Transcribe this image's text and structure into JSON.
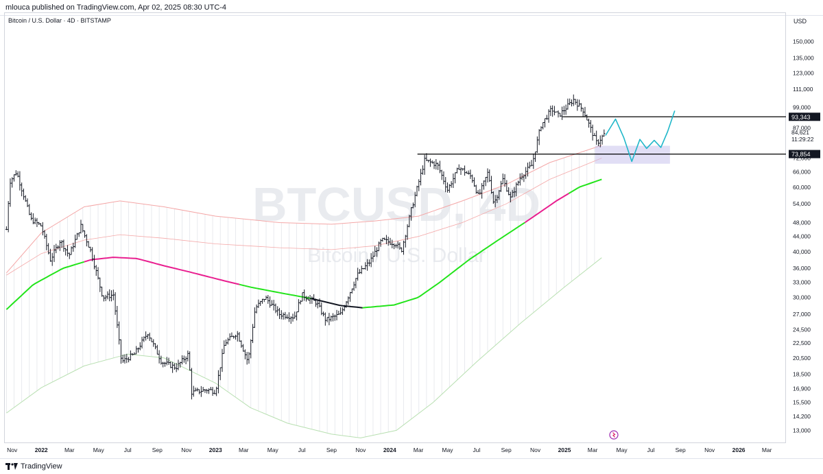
{
  "header": {
    "publish_line": "mlouca published on TradingView.com, Apr 02, 2025 08:30 UTC-4"
  },
  "symbol_line": "Bitcoin / U.S. Dollar · 4D · BITSTAMP",
  "price_axis_currency": "USD",
  "watermark": {
    "ticker": "BTCUSD, 4D",
    "name": "Bitcoin / U.S. Dollar"
  },
  "footer": {
    "brand": "TradingView"
  },
  "colors": {
    "candle": "#131722",
    "ma_green": "#22e41a",
    "ma_magenta": "#e91e8f",
    "ma_black": "#131722",
    "band_upper": "#f4a6a6",
    "band_lower": "#b7dfb0",
    "projection": "#1fb7c9",
    "zone": "#c9c2ec",
    "hline": "#000000"
  },
  "chart_data": {
    "type": "candlestick",
    "y_scale": "log",
    "ylim": [
      12000,
      180000
    ],
    "y_ticks": [
      "150,000",
      "135,000",
      "123,000",
      "111,000",
      "99,000",
      "87,000",
      "72,000",
      "66,000",
      "60,000",
      "54,000",
      "48,000",
      "44,000",
      "40,000",
      "36,000",
      "33,000",
      "30,000",
      "27,000",
      "24,500",
      "22,500",
      "20,500",
      "18,500",
      "16,900",
      "15,500",
      "14,200",
      "13,000"
    ],
    "x_ticks": [
      "Nov",
      "2022",
      "Mar",
      "May",
      "Jul",
      "Sep",
      "Nov",
      "2023",
      "Mar",
      "May",
      "Jul",
      "Sep",
      "Nov",
      "2024",
      "Mar",
      "May",
      "Jul",
      "Sep",
      "Nov",
      "2025",
      "Mar",
      "May",
      "Jul",
      "Sep",
      "Nov",
      "2026",
      "Mar"
    ],
    "x_tick_dates": [
      "2021-11-01",
      "2022-01-01",
      "2022-03-01",
      "2022-05-01",
      "2022-07-01",
      "2022-09-01",
      "2022-11-01",
      "2023-01-01",
      "2023-03-01",
      "2023-05-01",
      "2023-07-01",
      "2023-09-01",
      "2023-11-01",
      "2024-01-01",
      "2024-03-01",
      "2024-05-01",
      "2024-07-01",
      "2024-09-01",
      "2024-11-01",
      "2025-01-01",
      "2025-03-01",
      "2025-05-01",
      "2025-07-01",
      "2025-09-01",
      "2025-11-01",
      "2026-01-01",
      "2026-03-01"
    ],
    "x_range": [
      "2021-10-18",
      "2026-04-10"
    ],
    "price_path": [
      [
        "2021-10-20",
        46000
      ],
      [
        "2021-10-27",
        62000
      ],
      [
        "2021-11-10",
        66000
      ],
      [
        "2021-11-25",
        57000
      ],
      [
        "2021-12-10",
        49000
      ],
      [
        "2022-01-01",
        47000
      ],
      [
        "2022-01-20",
        38000
      ],
      [
        "2022-02-10",
        43000
      ],
      [
        "2022-02-28",
        39000
      ],
      [
        "2022-03-25",
        47000
      ],
      [
        "2022-04-15",
        40000
      ],
      [
        "2022-05-10",
        30000
      ],
      [
        "2022-06-01",
        30500
      ],
      [
        "2022-06-18",
        20000
      ],
      [
        "2022-07-15",
        21000
      ],
      [
        "2022-08-12",
        24000
      ],
      [
        "2022-09-10",
        20000
      ],
      [
        "2022-10-10",
        19300
      ],
      [
        "2022-11-05",
        21000
      ],
      [
        "2022-11-12",
        16500
      ],
      [
        "2022-12-15",
        16800
      ],
      [
        "2023-01-01",
        16600
      ],
      [
        "2023-01-20",
        22500
      ],
      [
        "2023-02-15",
        24000
      ],
      [
        "2023-03-10",
        20000
      ],
      [
        "2023-03-25",
        28000
      ],
      [
        "2023-04-15",
        30000
      ],
      [
        "2023-05-15",
        27000
      ],
      [
        "2023-06-15",
        26500
      ],
      [
        "2023-07-01",
        30500
      ],
      [
        "2023-08-01",
        29000
      ],
      [
        "2023-08-20",
        26000
      ],
      [
        "2023-09-20",
        27000
      ],
      [
        "2023-10-25",
        34500
      ],
      [
        "2023-11-20",
        37500
      ],
      [
        "2023-12-15",
        43000
      ],
      [
        "2024-01-15",
        42000
      ],
      [
        "2024-01-25",
        40000
      ],
      [
        "2024-02-15",
        52000
      ],
      [
        "2024-03-14",
        71000
      ],
      [
        "2024-04-10",
        69000
      ],
      [
        "2024-05-01",
        59000
      ],
      [
        "2024-05-25",
        68000
      ],
      [
        "2024-06-20",
        64000
      ],
      [
        "2024-07-05",
        56500
      ],
      [
        "2024-07-25",
        66000
      ],
      [
        "2024-08-06",
        54000
      ],
      [
        "2024-08-25",
        63000
      ],
      [
        "2024-09-10",
        56000
      ],
      [
        "2024-10-01",
        64000
      ],
      [
        "2024-10-25",
        69000
      ],
      [
        "2024-11-12",
        88000
      ],
      [
        "2024-12-05",
        98000
      ],
      [
        "2024-12-20",
        94000
      ],
      [
        "2025-01-20",
        104000
      ],
      [
        "2025-02-10",
        97000
      ],
      [
        "2025-03-01",
        84000
      ],
      [
        "2025-03-10",
        79000
      ],
      [
        "2025-03-28",
        84621
      ]
    ],
    "current_price": 84621,
    "price_label_extra": "11:29:22",
    "horizontal_levels": [
      {
        "label": "93,343",
        "value": 93343,
        "from": "2024-12-28",
        "to": "2026-04-10"
      },
      {
        "label": "73,854",
        "value": 73854,
        "from": "2024-02-28",
        "to": "2026-04-10"
      }
    ],
    "support_zone": {
      "from": "2025-03-06",
      "to": "2025-08-10",
      "low": 69500,
      "high": 77800
    },
    "projection": [
      [
        "2025-03-28",
        83000
      ],
      [
        "2025-04-18",
        92000
      ],
      [
        "2025-05-05",
        82000
      ],
      [
        "2025-05-22",
        70500
      ],
      [
        "2025-06-08",
        81000
      ],
      [
        "2025-06-22",
        76500
      ],
      [
        "2025-07-08",
        80500
      ],
      [
        "2025-07-22",
        77000
      ],
      [
        "2025-08-05",
        85000
      ],
      [
        "2025-08-20",
        97000
      ]
    ],
    "ma_200": [
      [
        "2021-10-20",
        27800
      ],
      [
        "2021-12-15",
        32500
      ],
      [
        "2022-02-15",
        36000
      ],
      [
        "2022-04-15",
        38000
      ],
      [
        "2022-06-01",
        38600
      ],
      [
        "2022-07-20",
        38300
      ],
      [
        "2022-09-15",
        36600
      ],
      [
        "2022-11-15",
        35000
      ],
      [
        "2023-01-15",
        33400
      ],
      [
        "2023-03-15",
        32000
      ],
      [
        "2023-05-20",
        30800
      ],
      [
        "2023-07-20",
        29800
      ],
      [
        "2023-09-20",
        28500
      ],
      [
        "2023-11-05",
        28100
      ],
      [
        "2024-01-10",
        28600
      ],
      [
        "2024-03-01",
        30000
      ],
      [
        "2024-04-15",
        33000
      ],
      [
        "2024-06-15",
        38000
      ],
      [
        "2024-08-15",
        43000
      ],
      [
        "2024-10-15",
        48500
      ],
      [
        "2024-12-15",
        55000
      ],
      [
        "2025-02-01",
        60000
      ],
      [
        "2025-03-20",
        63000
      ]
    ],
    "band_upper": [
      [
        "2021-10-20",
        35000
      ],
      [
        "2022-01-01",
        45000
      ],
      [
        "2022-04-01",
        53000
      ],
      [
        "2022-06-15",
        55000
      ],
      [
        "2022-09-15",
        53000
      ],
      [
        "2023-01-01",
        50000
      ],
      [
        "2023-05-15",
        48000
      ],
      [
        "2023-09-01",
        47500
      ],
      [
        "2023-12-01",
        48500
      ],
      [
        "2024-03-01",
        50000
      ],
      [
        "2024-06-01",
        55000
      ],
      [
        "2024-09-01",
        61000
      ],
      [
        "2024-12-01",
        70000
      ],
      [
        "2025-03-20",
        78000
      ]
    ],
    "band_inner_upper": [
      [
        "2021-10-20",
        34500
      ],
      [
        "2022-01-01",
        39500
      ],
      [
        "2022-04-01",
        43000
      ],
      [
        "2022-06-15",
        44500
      ],
      [
        "2022-09-15",
        43500
      ],
      [
        "2023-01-01",
        42000
      ],
      [
        "2023-05-15",
        41000
      ],
      [
        "2023-09-01",
        40500
      ],
      [
        "2023-12-01",
        41500
      ],
      [
        "2024-03-01",
        44000
      ],
      [
        "2024-06-01",
        48000
      ],
      [
        "2024-09-01",
        54000
      ],
      [
        "2024-12-01",
        63000
      ],
      [
        "2025-03-20",
        72000
      ]
    ],
    "band_lower": [
      [
        "2021-10-20",
        14500
      ],
      [
        "2022-01-01",
        17000
      ],
      [
        "2022-04-01",
        19500
      ],
      [
        "2022-07-01",
        21000
      ],
      [
        "2022-09-15",
        20500
      ],
      [
        "2023-01-01",
        17500
      ],
      [
        "2023-03-15",
        15000
      ],
      [
        "2023-06-01",
        13600
      ],
      [
        "2023-09-01",
        12700
      ],
      [
        "2023-11-01",
        12400
      ],
      [
        "2024-01-15",
        13000
      ],
      [
        "2024-04-01",
        15500
      ],
      [
        "2024-07-01",
        20000
      ],
      [
        "2024-10-01",
        25500
      ],
      [
        "2025-01-01",
        32000
      ],
      [
        "2025-03-20",
        38500
      ]
    ]
  }
}
